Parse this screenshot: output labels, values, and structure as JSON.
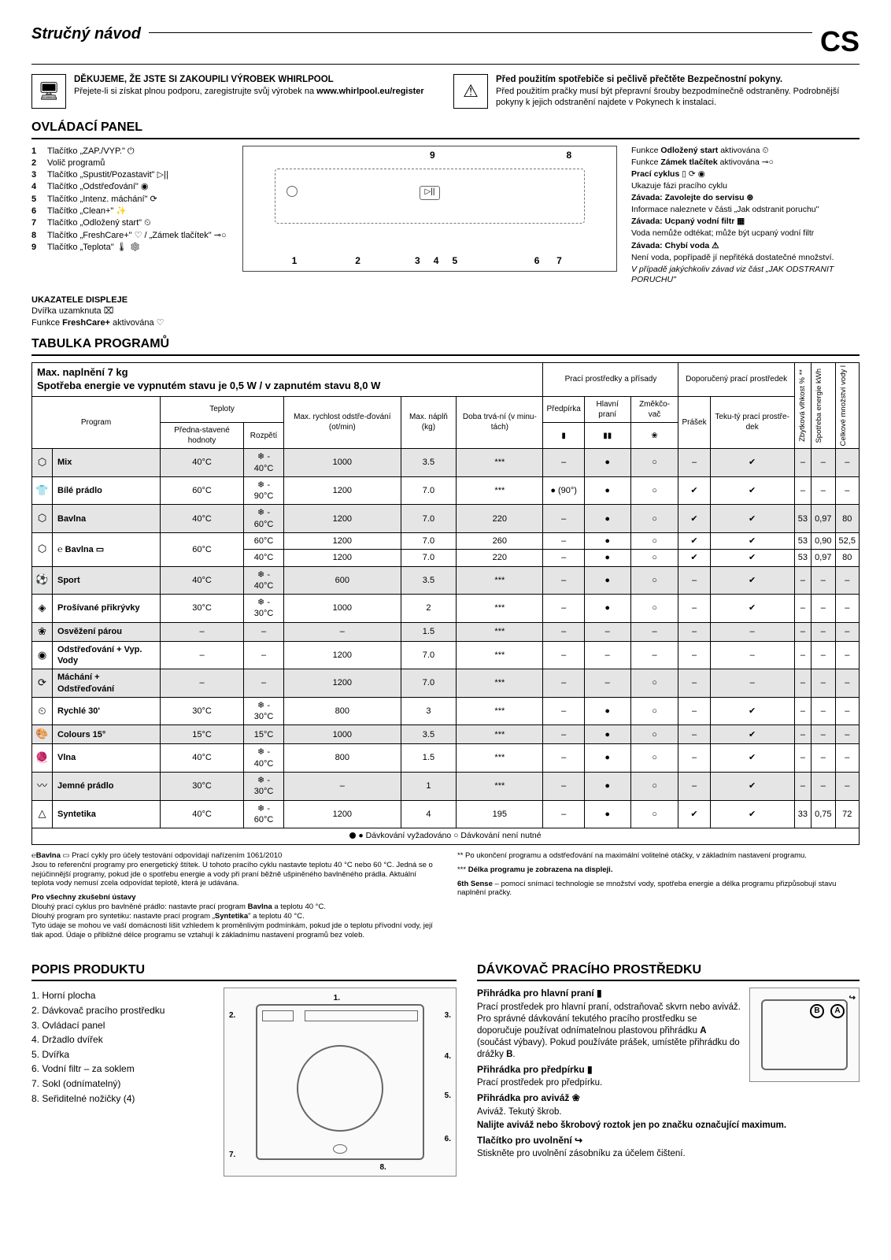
{
  "header": {
    "title": "Stručný návod",
    "lang": "CS"
  },
  "intro_left": {
    "heading": "DĚKUJEME, ŽE JSTE SI ZAKOUPILI VÝROBEK WHIRLPOOL",
    "body": "Přejete-li si získat plnou podporu, zaregistrujte svůj výrobek na ",
    "link": "www.whirlpool.eu/register"
  },
  "intro_right": {
    "heading": "Před použitím spotřebiče si pečlivě přečtěte Bezpečnostní pokyny.",
    "body": "Před použitím pračky musí být přepravní šrouby bezpodmínečně odstraněny. Podrobnější pokyny k jejich odstranění najdete v Pokynech k instalaci."
  },
  "section_panel": "OVLÁDACÍ PANEL",
  "panel_items": [
    {
      "n": "1",
      "t": "Tlačítko „ZAP./VYP.\" ⏻"
    },
    {
      "n": "2",
      "t": "Volič programů"
    },
    {
      "n": "3",
      "t": "Tlačítko „Spustit/Pozastavit\" ▷||"
    },
    {
      "n": "4",
      "t": "Tlačítko „Odstřeďování\" ◉"
    },
    {
      "n": "5",
      "t": "Tlačítko „Intenz. máchání\" ⟳"
    },
    {
      "n": "6",
      "t": "Tlačítko „Clean+\" ✨"
    },
    {
      "n": "7",
      "t": "Tlačítko „Odložený start\" ⏲"
    },
    {
      "n": "8",
      "t": "Tlačítko „FreshCare+\" ♡ / „Zámek tlačítek\" ⊸○"
    },
    {
      "n": "9",
      "t": "Tlačítko „Teplota\" 🌡 ❄"
    }
  ],
  "indicators_title": "UKAZATELE DISPLEJE",
  "indicators": [
    "Dvířka uzamknuta ⌧",
    "Funkce <b>FreshCare+</b> aktivována ♡"
  ],
  "panel_right": [
    {
      "b": "",
      "t": "Funkce <b>Odložený start</b> aktivována ⏲"
    },
    {
      "b": "",
      "t": "Funkce <b>Zámek tlačítek</b> aktivována ⊸○"
    },
    {
      "b": "Prací cyklus",
      "t": " ▯ ⟳ ◉"
    },
    {
      "b": "",
      "t": "Ukazuje fázi pracího cyklu"
    },
    {
      "b": "Závada: Zavolejte do servisu ⊛",
      "t": ""
    },
    {
      "b": "",
      "t": "Informace naleznete v části „Jak odstranit poruchu\""
    },
    {
      "b": "Závada: Ucpaný vodní filtr ▦",
      "t": ""
    },
    {
      "b": "",
      "t": "Voda nemůže odtékat; může být ucpaný vodní filtr"
    },
    {
      "b": "Závada: Chybí voda ⚠",
      "t": ""
    },
    {
      "b": "",
      "t": "Není voda, popřípadě jí nepřitéká dostatečné množství."
    },
    {
      "b": "",
      "t": "<i>V případě jakýchkoliv závad viz část „JAK ODSTRANIT PORUCHU\"</i>"
    }
  ],
  "section_table": "TABULKA PROGRAMŮ",
  "table_header": {
    "top": "Max. naplnění 7 kg\nSpotřeba energie ve vypnutém stavu je 0,5 W / v zapnutém stavu 8,0 W",
    "detergent_group": "Prací prostředky a přísady",
    "recommend_group": "Doporučený prací prostředek",
    "cols": {
      "program": "Program",
      "temp_group": "Teploty",
      "temp1": "Předna-stavené hodnoty",
      "temp2": "Rozpětí",
      "spin": "Max. rychlost odstře-ďování (ot/min)",
      "load": "Max. náplň (kg)",
      "dur": "Doba trvá-ní (v minu-tách)",
      "prewash": "Předpírka",
      "mainwash": "Hlavní praní",
      "soft": "Změkčo-vač",
      "powder": "Prášek",
      "liquid": "Teku-tý prací prostře-dek",
      "resid": "Zbytková vlhkost % **",
      "energy": "Spotřeba energie kWh",
      "water": "Celkové množství vody l"
    }
  },
  "rows": [
    {
      "alt": 1,
      "icon": "⬡",
      "name": "Mix",
      "t1": "40°C",
      "t2": "❄ - 40°C",
      "spin": "1000",
      "load": "3.5",
      "dur": "***",
      "pw": "–",
      "mw": "●",
      "sf": "○",
      "pd": "–",
      "lq": "✔",
      "rh": "–",
      "en": "–",
      "wa": "–"
    },
    {
      "alt": 0,
      "icon": "👕",
      "name": "Bílé prádlo",
      "t1": "60°C",
      "t2": "❄ - 90°C",
      "spin": "1200",
      "load": "7.0",
      "dur": "***",
      "pw": "● (90°)",
      "mw": "●",
      "sf": "○",
      "pd": "✔",
      "lq": "✔",
      "rh": "–",
      "en": "–",
      "wa": "–"
    },
    {
      "alt": 1,
      "icon": "⬡",
      "name": "Bavlna",
      "t1": "40°C",
      "t2": "❄ - 60°C",
      "spin": "1200",
      "load": "7.0",
      "dur": "220",
      "pw": "–",
      "mw": "●",
      "sf": "○",
      "pd": "✔",
      "lq": "✔",
      "rh": "53",
      "en": "0,97",
      "wa": "80"
    },
    {
      "alt": 0,
      "icon": "⬡",
      "name": "℮ Bavlna ▭",
      "t1": "60°C",
      "t2": "60°C",
      "spin": "1200",
      "load": "7.0",
      "dur": "260",
      "pw": "–",
      "mw": "●",
      "sf": "○",
      "pd": "✔",
      "lq": "✔",
      "rh": "53",
      "en": "0,90",
      "wa": "52,5",
      "rowspan": 2
    },
    {
      "alt": 0,
      "icon": "",
      "name": "",
      "t1": "",
      "t2": "40°C",
      "spin": "1200",
      "load": "7.0",
      "dur": "220",
      "pw": "–",
      "mw": "●",
      "sf": "○",
      "pd": "✔",
      "lq": "✔",
      "rh": "53",
      "en": "0,97",
      "wa": "80"
    },
    {
      "alt": 1,
      "icon": "⚽",
      "name": "Sport",
      "t1": "40°C",
      "t2": "❄ - 40°C",
      "spin": "600",
      "load": "3.5",
      "dur": "***",
      "pw": "–",
      "mw": "●",
      "sf": "○",
      "pd": "–",
      "lq": "✔",
      "rh": "–",
      "en": "–",
      "wa": "–"
    },
    {
      "alt": 0,
      "icon": "◈",
      "name": "Prošívané přikrývky",
      "t1": "30°C",
      "t2": "❄ - 30°C",
      "spin": "1000",
      "load": "2",
      "dur": "***",
      "pw": "–",
      "mw": "●",
      "sf": "○",
      "pd": "–",
      "lq": "✔",
      "rh": "–",
      "en": "–",
      "wa": "–"
    },
    {
      "alt": 1,
      "icon": "❀",
      "name": "Osvěžení párou",
      "t1": "–",
      "t2": "–",
      "spin": "–",
      "load": "1.5",
      "dur": "***",
      "pw": "–",
      "mw": "–",
      "sf": "–",
      "pd": "–",
      "lq": "–",
      "rh": "–",
      "en": "–",
      "wa": "–"
    },
    {
      "alt": 0,
      "icon": "◉",
      "name": "Odstřeďování + Vyp. Vody",
      "t1": "–",
      "t2": "–",
      "spin": "1200",
      "load": "7.0",
      "dur": "***",
      "pw": "–",
      "mw": "–",
      "sf": "–",
      "pd": "–",
      "lq": "–",
      "rh": "–",
      "en": "–",
      "wa": "–"
    },
    {
      "alt": 1,
      "icon": "⟳",
      "name": "Máchání + Odstřeďování",
      "t1": "–",
      "t2": "–",
      "spin": "1200",
      "load": "7.0",
      "dur": "***",
      "pw": "–",
      "mw": "–",
      "sf": "○",
      "pd": "–",
      "lq": "–",
      "rh": "–",
      "en": "–",
      "wa": "–"
    },
    {
      "alt": 0,
      "icon": "⏲",
      "name": "Rychlé 30'",
      "t1": "30°C",
      "t2": "❄ - 30°C",
      "spin": "800",
      "load": "3",
      "dur": "***",
      "pw": "–",
      "mw": "●",
      "sf": "○",
      "pd": "–",
      "lq": "✔",
      "rh": "–",
      "en": "–",
      "wa": "–"
    },
    {
      "alt": 1,
      "icon": "🎨",
      "name": "Colours 15°",
      "t1": "15°C",
      "t2": "15°C",
      "spin": "1000",
      "load": "3.5",
      "dur": "***",
      "pw": "–",
      "mw": "●",
      "sf": "○",
      "pd": "–",
      "lq": "✔",
      "rh": "–",
      "en": "–",
      "wa": "–"
    },
    {
      "alt": 0,
      "icon": "🧶",
      "name": "Vlna",
      "t1": "40°C",
      "t2": "❄ - 40°C",
      "spin": "800",
      "load": "1.5",
      "dur": "***",
      "pw": "–",
      "mw": "●",
      "sf": "○",
      "pd": "–",
      "lq": "✔",
      "rh": "–",
      "en": "–",
      "wa": "–"
    },
    {
      "alt": 1,
      "icon": "〰",
      "name": "Jemné prádlo",
      "t1": "30°C",
      "t2": "❄ - 30°C",
      "spin": "–",
      "load": "1",
      "dur": "***",
      "pw": "–",
      "mw": "●",
      "sf": "○",
      "pd": "–",
      "lq": "✔",
      "rh": "–",
      "en": "–",
      "wa": "–"
    },
    {
      "alt": 0,
      "icon": "△",
      "name": "Syntetika",
      "t1": "40°C",
      "t2": "❄ - 60°C",
      "spin": "1200",
      "load": "4",
      "dur": "195",
      "pw": "–",
      "mw": "●",
      "sf": "○",
      "pd": "✔",
      "lq": "✔",
      "rh": "33",
      "en": "0,75",
      "wa": "72"
    }
  ],
  "legend": "● Dávkování vyžadováno   ○ Dávkování není nutné",
  "notes_left": [
    "℮<b>Bavlna</b> ▭ Prací cykly pro účely testování odpovídají nařízením 1061/2010\nJsou to referenční programy pro energetický štítek. U tohoto pracího cyklu nastavte teplotu 40 °C nebo 60 °C. Jedná se o nejúčinnější programy, pokud jde o spotřebu energie a vody při praní běžně ušpiněného bavlněného prádla. Aktuální teplota vody nemusí zcela odpovídat teplotě, která je udávána.",
    "<b>Pro všechny zkušební ústavy</b>\nDlouhý prací cyklus pro bavlněné prádlo: nastavte prací program <b>Bavlna</b> a teplotu 40 °C.\nDlouhý program pro syntetiku: nastavte prací program „<b>Syntetika</b>\" a teplotu 40 °C.\nTyto údaje se mohou ve vaší domácnosti lišit vzhledem k proměnlivým podmínkám, pokud jde o teplotu přívodní vody, její tlak apod. Údaje o přibližné délce programu se vztahují k základnímu nastavení programů bez voleb."
  ],
  "notes_right": [
    "** Po ukončení programu a odstřeďování na maximální volitelné otáčky, v základním nastavení programu.",
    "*** <b>Délka programu je zobrazena na displeji.</b>",
    "<b>6th Sense</b> – pomocí snímací technologie se množství vody, spotřeba energie a délka programu přizpůsobují stavu naplnění pračky."
  ],
  "section_product": "POPIS PRODUKTU",
  "product_items": [
    "1. Horní plocha",
    "2. Dávkovač pracího prostředku",
    "3. Ovládací panel",
    "4. Držadlo dvířek",
    "5. Dvířka",
    "6. Vodní filtr – za soklem",
    "7. Sokl (odnímatelný)",
    "8. Seřiditelné nožičky (4)"
  ],
  "section_dispenser": "DÁVKOVAČ PRACÍHO PROSTŘEDKU",
  "dispenser": {
    "h1": "Přihrádka pro hlavní praní ▮",
    "p1": "Prací prostředek pro hlavní praní, odstraňovač skvrn nebo aviváž. Pro správné dávkování tekutého pracího prostředku se doporučuje používat odnímatelnou plastovou přihrádku <b>A</b> (součást výbavy). Pokud používáte prášek, umístěte přihrádku do drážky <b>B</b>.",
    "h2": "Přihrádka pro předpírku ▮",
    "p2": "Prací prostředek pro předpírku.",
    "h3": "Přihrádka pro aviváž ❀",
    "p3": "Aviváž. Tekutý škrob.",
    "bold": "Nalijte aviváž nebo škrobový roztok jen po značku označující maximum.",
    "h4": "Tlačítko pro uvolnění ↪",
    "p4": "Stiskněte pro uvolnění zásobníku za účelem čištení."
  }
}
